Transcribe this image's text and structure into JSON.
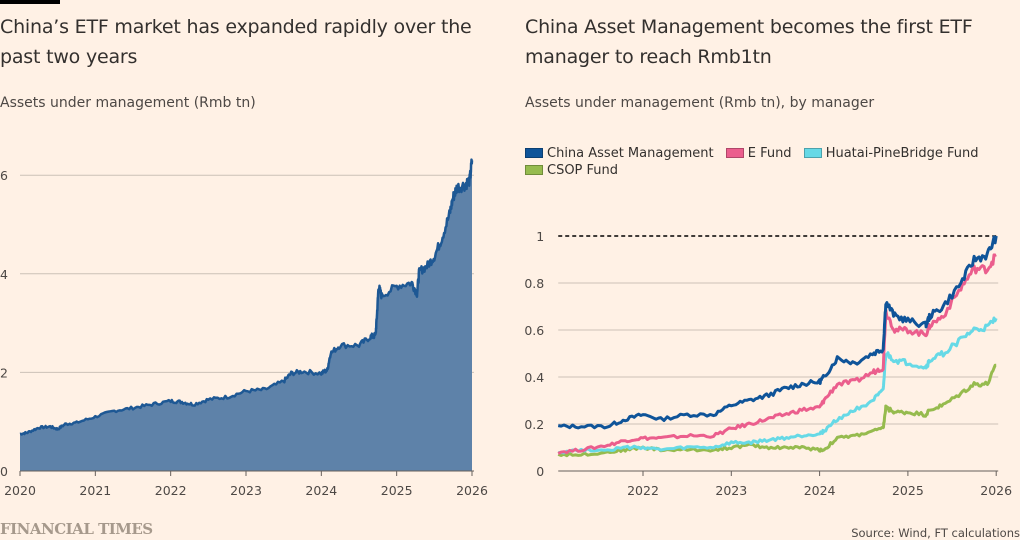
{
  "left_title": "China’s ETF market has expanded rapidly over the past two years",
  "right_title": "China Asset Management becomes the first ETF manager to reach Rmb1tn",
  "source": "Source: Wind, FT calculations",
  "brand": "FINANCIAL TIMES",
  "chart_data": [
    {
      "type": "area",
      "title": "China’s ETF market has expanded rapidly over the past two years",
      "subtitle": "Assets under management (Rmb tn)",
      "xlabel": "",
      "ylabel": "",
      "xlim": [
        2020,
        2026
      ],
      "ylim": [
        0,
        6.5
      ],
      "x_ticks": [
        "2020",
        "2021",
        "2022",
        "2023",
        "2024",
        "2025",
        "2026"
      ],
      "y_ticks": [
        "0",
        "2",
        "4",
        "6"
      ],
      "grid": true,
      "color": "#1e5894",
      "fill_color": "#5e82a9",
      "x": [
        2020.0,
        2020.1,
        2020.25,
        2020.4,
        2020.5,
        2020.6,
        2020.75,
        2021.0,
        2021.25,
        2021.5,
        2021.75,
        2022.0,
        2022.15,
        2022.3,
        2022.5,
        2022.75,
        2023.0,
        2023.25,
        2023.5,
        2023.6,
        2023.75,
        2024.0,
        2024.08,
        2024.12,
        2024.25,
        2024.5,
        2024.65,
        2024.72,
        2024.74,
        2024.76,
        2024.8,
        2025.0,
        2025.2,
        2025.27,
        2025.3,
        2025.4,
        2025.5,
        2025.6,
        2025.7,
        2025.75,
        2025.8,
        2025.9,
        2025.97,
        2026.0
      ],
      "values": [
        0.75,
        0.78,
        0.88,
        0.9,
        0.85,
        0.95,
        0.98,
        1.1,
        1.22,
        1.28,
        1.35,
        1.42,
        1.4,
        1.35,
        1.45,
        1.5,
        1.62,
        1.65,
        1.82,
        1.98,
        2.02,
        1.98,
        2.05,
        2.38,
        2.55,
        2.55,
        2.72,
        2.75,
        3.2,
        3.75,
        3.55,
        3.75,
        3.82,
        3.6,
        4.05,
        4.15,
        4.35,
        4.72,
        5.2,
        5.55,
        5.75,
        5.8,
        5.9,
        6.3
      ]
    },
    {
      "type": "line",
      "title": "China Asset Management becomes the first ETF manager to reach Rmb1tn",
      "subtitle": "Assets under management (Rmb tn), by manager",
      "xlabel": "",
      "ylabel": "",
      "xlim": [
        2021.04,
        2026.0
      ],
      "ylim": [
        0,
        1.05
      ],
      "x_ticks": [
        "2022",
        "2023",
        "2024",
        "2025",
        "2026"
      ],
      "y_ticks": [
        "0",
        "0.2",
        "0.4",
        "0.6",
        "0.8",
        "1"
      ],
      "grid": true,
      "legend_position": "top-left",
      "reference_line": {
        "value": 1,
        "style": "dashed",
        "color": "#000000"
      },
      "x": [
        2021.04,
        2021.3,
        2021.6,
        2021.8,
        2022.0,
        2022.2,
        2022.5,
        2022.8,
        2023.0,
        2023.2,
        2023.4,
        2023.6,
        2023.8,
        2024.0,
        2024.05,
        2024.2,
        2024.4,
        2024.6,
        2024.72,
        2024.75,
        2024.85,
        2025.0,
        2025.2,
        2025.25,
        2025.4,
        2025.6,
        2025.75,
        2025.9,
        2026.0
      ],
      "series": [
        {
          "name": "China Asset Management",
          "color": "#0f5499",
          "values": [
            0.19,
            0.19,
            0.19,
            0.22,
            0.24,
            0.22,
            0.24,
            0.24,
            0.28,
            0.3,
            0.32,
            0.35,
            0.37,
            0.38,
            0.4,
            0.48,
            0.46,
            0.5,
            0.52,
            0.72,
            0.66,
            0.64,
            0.62,
            0.66,
            0.7,
            0.8,
            0.9,
            0.92,
            1.0
          ]
        },
        {
          "name": "E Fund",
          "color": "#eb5e8d",
          "values": [
            0.08,
            0.09,
            0.11,
            0.13,
            0.14,
            0.14,
            0.15,
            0.15,
            0.18,
            0.2,
            0.22,
            0.24,
            0.26,
            0.27,
            0.3,
            0.37,
            0.38,
            0.42,
            0.44,
            0.68,
            0.6,
            0.6,
            0.58,
            0.62,
            0.66,
            0.78,
            0.86,
            0.86,
            0.92
          ]
        },
        {
          "name": "Huatai-PineBridge Fund",
          "color": "#66d9e6",
          "values": [
            0.08,
            0.09,
            0.09,
            0.1,
            0.1,
            0.09,
            0.1,
            0.1,
            0.12,
            0.12,
            0.13,
            0.14,
            0.15,
            0.16,
            0.17,
            0.22,
            0.26,
            0.3,
            0.34,
            0.5,
            0.47,
            0.46,
            0.44,
            0.47,
            0.5,
            0.56,
            0.6,
            0.61,
            0.65
          ]
        },
        {
          "name": "CSOP Fund",
          "color": "#96bb4e",
          "values": [
            0.07,
            0.07,
            0.08,
            0.09,
            0.1,
            0.09,
            0.09,
            0.09,
            0.1,
            0.11,
            0.1,
            0.1,
            0.1,
            0.09,
            0.09,
            0.14,
            0.15,
            0.17,
            0.18,
            0.27,
            0.25,
            0.25,
            0.24,
            0.26,
            0.28,
            0.33,
            0.37,
            0.37,
            0.45
          ]
        }
      ]
    }
  ]
}
